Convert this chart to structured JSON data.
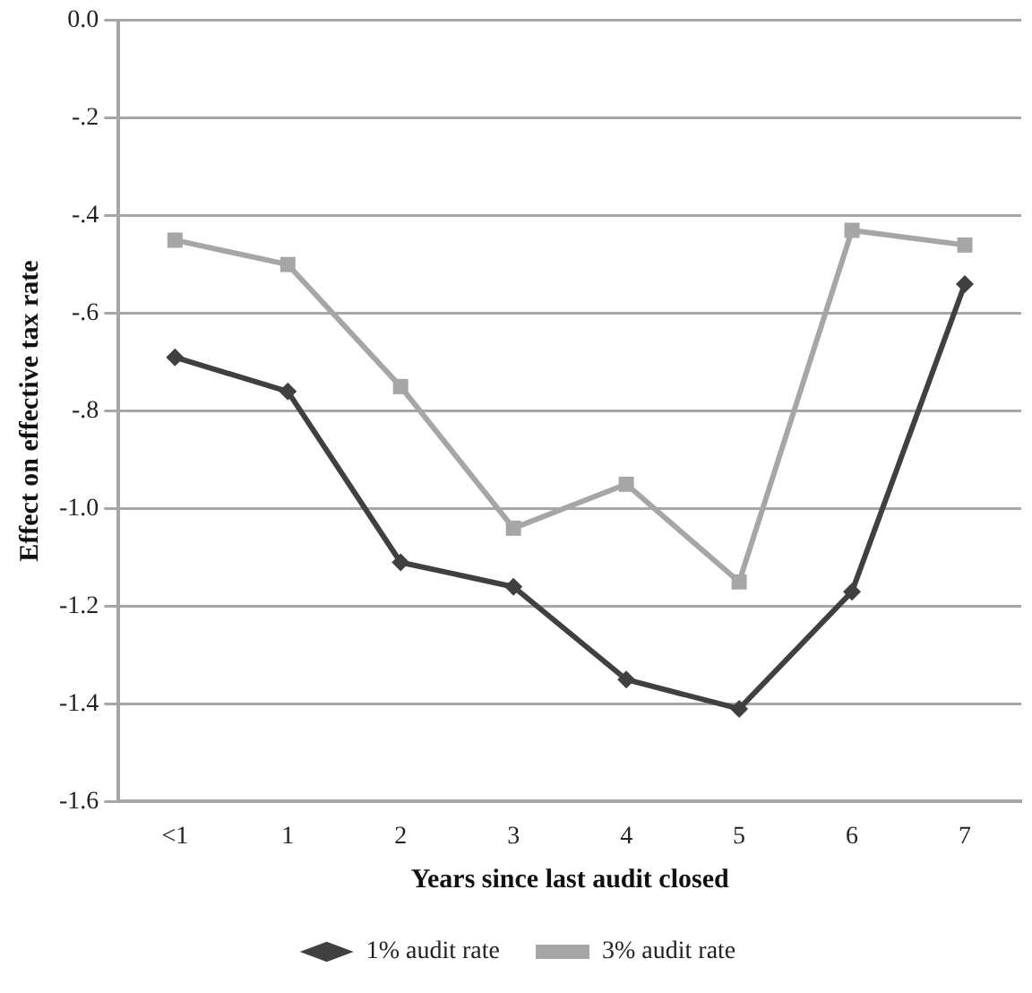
{
  "chart_data": {
    "type": "line",
    "xlabel": "Years since last audit closed",
    "ylabel": "Effect on effective tax rate",
    "categories": [
      "<1",
      "1",
      "2",
      "3",
      "4",
      "5",
      "6",
      "7"
    ],
    "series": [
      {
        "name": "1% audit rate",
        "color": "#404040",
        "marker": "diamond",
        "values": [
          -0.69,
          -0.76,
          -1.11,
          -1.16,
          -1.35,
          -1.41,
          -1.17,
          -0.54
        ]
      },
      {
        "name": "3% audit rate",
        "color": "#a6a6a6",
        "marker": "square",
        "values": [
          -0.45,
          -0.5,
          -0.75,
          -1.04,
          -0.95,
          -1.15,
          -0.43,
          -0.46
        ]
      }
    ],
    "ylim": [
      -1.6,
      0
    ],
    "yticks": [
      {
        "value": 0,
        "label": "0.0"
      },
      {
        "value": -0.2,
        "label": "-.2"
      },
      {
        "value": -0.4,
        "label": "-.4"
      },
      {
        "value": -0.6,
        "label": "-.6"
      },
      {
        "value": -0.8,
        "label": "-.8"
      },
      {
        "value": -1.0,
        "label": "-1.0"
      },
      {
        "value": -1.2,
        "label": "-1.2"
      },
      {
        "value": -1.4,
        "label": "-1.4"
      },
      {
        "value": -1.6,
        "label": "-1.6"
      }
    ],
    "grid": "y",
    "legend": "bottom",
    "line_style": "solid"
  }
}
